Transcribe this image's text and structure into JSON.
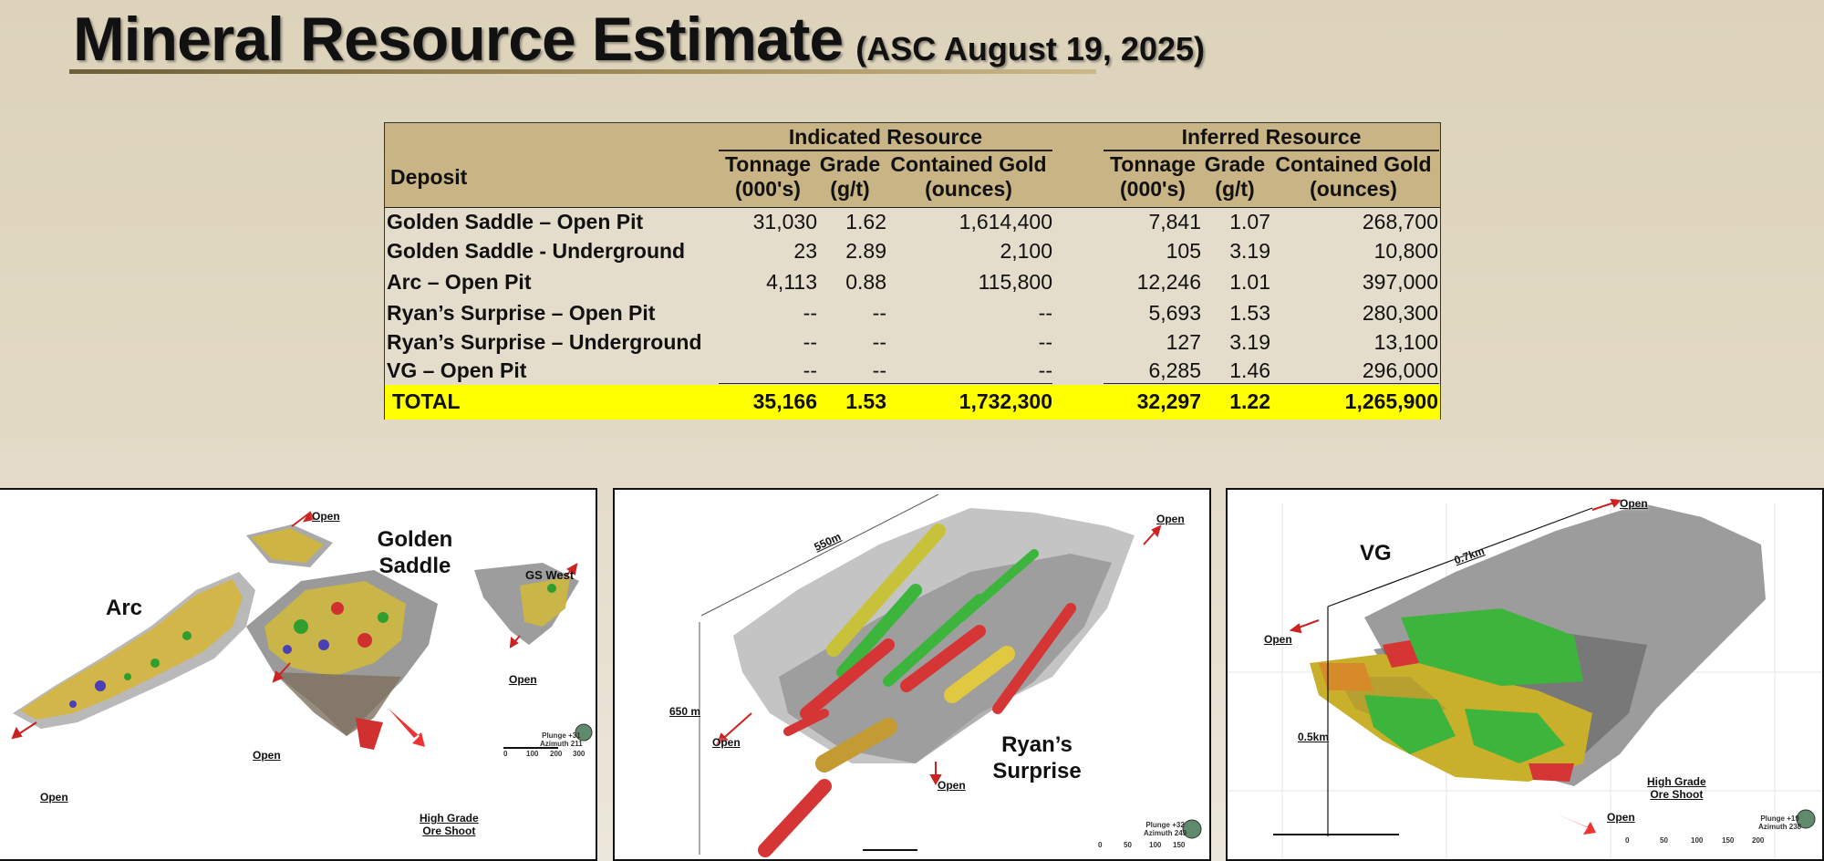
{
  "title": {
    "main": "Mineral Resource Estimate",
    "subtitle": "(ASC August 19, 2025)"
  },
  "table": {
    "group_headers": {
      "indicated": "Indicated Resource",
      "inferred": "Inferred Resource"
    },
    "deposit_header": "Deposit",
    "col_headers": [
      {
        "l1": "Tonnage",
        "l2": "(000's)"
      },
      {
        "l1": "Grade",
        "l2": "(g/t)"
      },
      {
        "l1": "Contained Gold",
        "l2": "(ounces)"
      },
      {
        "l1": "Tonnage",
        "l2": "(000's)"
      },
      {
        "l1": "Grade",
        "l2": "(g/t)"
      },
      {
        "l1": "Contained Gold",
        "l2": "(ounces)"
      }
    ],
    "rows": [
      {
        "deposit": "Golden Saddle – Open Pit",
        "v": [
          "31,030",
          "1.62",
          "1,614,400",
          "7,841",
          "1.07",
          "268,700"
        ]
      },
      {
        "deposit": "Golden Saddle - Underground",
        "v": [
          "23",
          "2.89",
          "2,100",
          "105",
          "3.19",
          "10,800"
        ]
      },
      {
        "deposit": "Arc – Open Pit",
        "v": [
          "4,113",
          "0.88",
          "115,800",
          "12,246",
          "1.01",
          "397,000"
        ]
      },
      {
        "deposit": "Ryan’s Surprise – Open Pit",
        "v": [
          "--",
          "--",
          "--",
          "5,693",
          "1.53",
          "280,300"
        ]
      },
      {
        "deposit": "Ryan’s Surprise – Underground",
        "v": [
          "--",
          "--",
          "--",
          "127",
          "3.19",
          "13,100"
        ]
      },
      {
        "deposit": "VG – Open Pit",
        "v": [
          "--",
          "--",
          "--",
          "6,285",
          "1.46",
          "296,000"
        ]
      }
    ],
    "total": {
      "label": "TOTAL",
      "v": [
        "35,166",
        "1.53",
        "1,732,300",
        "32,297",
        "1.22",
        "1,265,900"
      ]
    },
    "colors": {
      "header": "#c8b485",
      "body": "#e4ddcb",
      "total": "#ffff00"
    }
  },
  "panels": {
    "left": {
      "deposit_labels": {
        "arc": "Arc",
        "golden_l1": "Golden",
        "golden_l2": "Saddle",
        "gs_west": "GS West"
      },
      "open_label": "Open",
      "high_grade_l1": "High Grade",
      "high_grade_l2": "Ore Shoot",
      "plunge": "Plunge +31",
      "azimuth": "Azimuth 211",
      "scale": [
        "0",
        "100",
        "200",
        "300"
      ]
    },
    "middle": {
      "deposit_l1": "Ryan’s",
      "deposit_l2": "Surprise",
      "open_label": "Open",
      "dim_long": "550m",
      "dim_depth": "650 m",
      "plunge": "Plunge +32",
      "azimuth": "Azimuth 249",
      "scale": [
        "0",
        "50",
        "100",
        "150"
      ]
    },
    "right": {
      "deposit": "VG",
      "open_label": "Open",
      "dim_long": "0.7km",
      "dim_depth": "0.5km",
      "high_grade_l1": "High Grade",
      "high_grade_l2": "Ore Shoot",
      "plunge": "Plunge +19",
      "azimuth": "Azimuth 238",
      "scale": [
        "0",
        "50",
        "100",
        "150",
        "200"
      ]
    }
  }
}
